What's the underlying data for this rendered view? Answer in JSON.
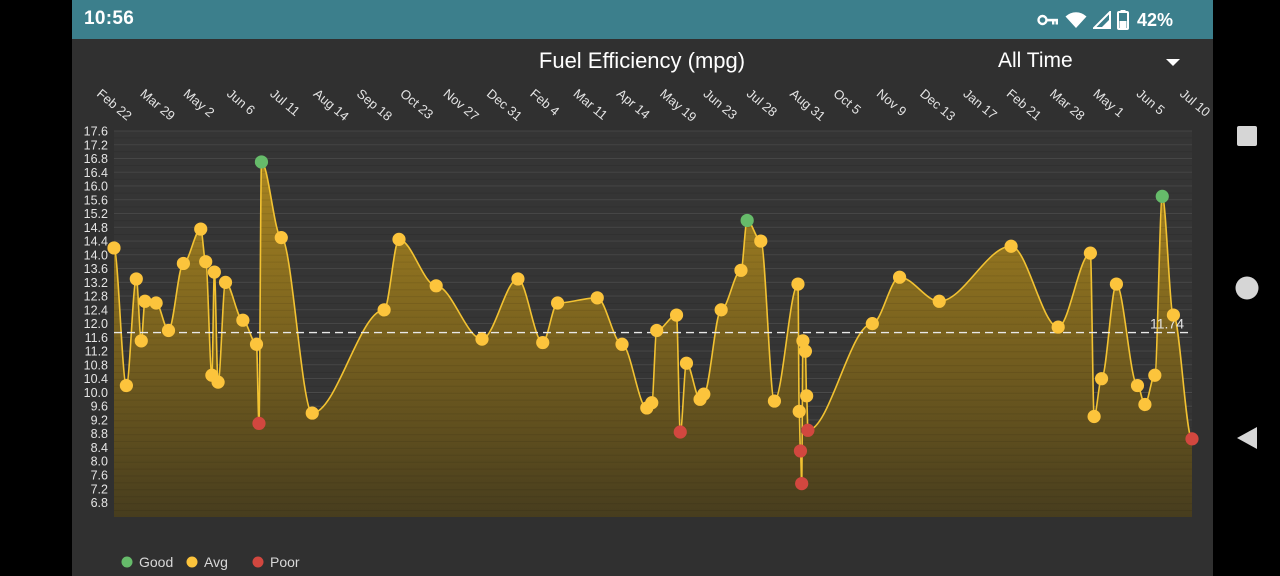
{
  "status_bar": {
    "time": "10:56",
    "battery_percent": "42%",
    "icons": [
      "vpn-key-icon",
      "wifi-icon",
      "cell-signal-icon",
      "battery-icon"
    ],
    "color": "#3c7f8c"
  },
  "chart_header": {
    "title": "Fuel Efficiency (mpg)",
    "range_selector": "All Time"
  },
  "legend": [
    {
      "label": "Good",
      "color": "#66bb6a"
    },
    {
      "label": "Avg",
      "color": "#fcc43c"
    },
    {
      "label": "Poor",
      "color": "#d2473f"
    }
  ],
  "nav_bar": {
    "icons": [
      "recents-square-icon",
      "home-circle-icon",
      "back-triangle-icon"
    ]
  },
  "chart_data": {
    "type": "line",
    "title": "Fuel Efficiency (mpg)",
    "x_tick_labels": [
      "Feb 22",
      "Mar 29",
      "May 2",
      "Jun 6",
      "Jul 11",
      "Aug 14",
      "Sep 18",
      "Oct 23",
      "Nov 27",
      "Dec 31",
      "Feb 4",
      "Mar 11",
      "Apr 14",
      "May 19",
      "Jun 23",
      "Jul 28",
      "Aug 31",
      "Oct 5",
      "Nov 9",
      "Dec 13",
      "Jan 17",
      "Feb 21",
      "Mar 28",
      "May 1",
      "Jun 5",
      "Jul 10"
    ],
    "y_ticks": [
      6.8,
      7.2,
      7.6,
      8.0,
      8.4,
      8.8,
      9.2,
      9.6,
      10.0,
      10.4,
      10.8,
      11.2,
      11.6,
      12.0,
      12.4,
      12.8,
      13.2,
      13.6,
      14.0,
      14.4,
      14.8,
      15.2,
      15.6,
      16.0,
      16.4,
      16.8,
      17.2,
      17.6
    ],
    "ylim": [
      6.4,
      17.6
    ],
    "average": 11.74,
    "average_label": "11.74",
    "grid": true,
    "legend_position": "bottom-left",
    "colors": {
      "good": "#66bb6a",
      "avg": "#fcc43c",
      "poor": "#d2473f",
      "line": "#f2c232",
      "fill_top": "#a98520",
      "fill_bottom": "#473d1e"
    },
    "points": [
      {
        "x": 0.0,
        "y": 14.2,
        "rating": "avg"
      },
      {
        "x": 0.5,
        "y": 10.2,
        "rating": "avg"
      },
      {
        "x": 0.9,
        "y": 13.3,
        "rating": "avg"
      },
      {
        "x": 1.1,
        "y": 11.5,
        "rating": "avg"
      },
      {
        "x": 1.25,
        "y": 12.65,
        "rating": "avg"
      },
      {
        "x": 1.7,
        "y": 12.6,
        "rating": "avg"
      },
      {
        "x": 2.2,
        "y": 11.8,
        "rating": "avg"
      },
      {
        "x": 2.8,
        "y": 13.75,
        "rating": "avg"
      },
      {
        "x": 3.5,
        "y": 14.75,
        "rating": "avg"
      },
      {
        "x": 3.7,
        "y": 13.8,
        "rating": "avg"
      },
      {
        "x": 3.95,
        "y": 10.5,
        "rating": "avg"
      },
      {
        "x": 4.05,
        "y": 13.5,
        "rating": "avg"
      },
      {
        "x": 4.2,
        "y": 10.3,
        "rating": "avg"
      },
      {
        "x": 4.5,
        "y": 13.2,
        "rating": "avg"
      },
      {
        "x": 5.2,
        "y": 12.1,
        "rating": "avg"
      },
      {
        "x": 5.75,
        "y": 11.4,
        "rating": "avg"
      },
      {
        "x": 5.85,
        "y": 9.1,
        "rating": "poor"
      },
      {
        "x": 5.95,
        "y": 16.7,
        "rating": "good"
      },
      {
        "x": 6.75,
        "y": 14.5,
        "rating": "avg"
      },
      {
        "x": 8.0,
        "y": 9.4,
        "rating": "avg"
      },
      {
        "x": 10.9,
        "y": 12.4,
        "rating": "avg"
      },
      {
        "x": 11.5,
        "y": 14.45,
        "rating": "avg"
      },
      {
        "x": 13.0,
        "y": 13.1,
        "rating": "avg"
      },
      {
        "x": 14.85,
        "y": 11.55,
        "rating": "avg"
      },
      {
        "x": 16.3,
        "y": 13.3,
        "rating": "avg"
      },
      {
        "x": 17.3,
        "y": 11.45,
        "rating": "avg"
      },
      {
        "x": 17.9,
        "y": 12.6,
        "rating": "avg"
      },
      {
        "x": 19.5,
        "y": 12.75,
        "rating": "avg"
      },
      {
        "x": 20.5,
        "y": 11.4,
        "rating": "avg"
      },
      {
        "x": 21.5,
        "y": 9.55,
        "rating": "avg"
      },
      {
        "x": 21.7,
        "y": 9.7,
        "rating": "avg"
      },
      {
        "x": 21.9,
        "y": 11.8,
        "rating": "avg"
      },
      {
        "x": 22.7,
        "y": 12.25,
        "rating": "avg"
      },
      {
        "x": 22.85,
        "y": 8.85,
        "rating": "poor"
      },
      {
        "x": 23.1,
        "y": 10.85,
        "rating": "avg"
      },
      {
        "x": 23.65,
        "y": 9.8,
        "rating": "avg"
      },
      {
        "x": 23.8,
        "y": 9.95,
        "rating": "avg"
      },
      {
        "x": 24.5,
        "y": 12.4,
        "rating": "avg"
      },
      {
        "x": 25.3,
        "y": 13.55,
        "rating": "avg"
      },
      {
        "x": 25.55,
        "y": 15.0,
        "rating": "good"
      },
      {
        "x": 26.1,
        "y": 14.4,
        "rating": "avg"
      },
      {
        "x": 26.65,
        "y": 9.75,
        "rating": "avg"
      },
      {
        "x": 27.6,
        "y": 13.15,
        "rating": "avg"
      },
      {
        "x": 27.65,
        "y": 9.45,
        "rating": "avg"
      },
      {
        "x": 27.7,
        "y": 8.3,
        "rating": "poor"
      },
      {
        "x": 27.75,
        "y": 7.35,
        "rating": "poor"
      },
      {
        "x": 27.8,
        "y": 11.5,
        "rating": "avg"
      },
      {
        "x": 27.9,
        "y": 11.2,
        "rating": "avg"
      },
      {
        "x": 27.95,
        "y": 9.9,
        "rating": "avg"
      },
      {
        "x": 28.0,
        "y": 8.9,
        "rating": "poor"
      },
      {
        "x": 30.6,
        "y": 12.0,
        "rating": "avg"
      },
      {
        "x": 31.7,
        "y": 13.35,
        "rating": "avg"
      },
      {
        "x": 33.3,
        "y": 12.65,
        "rating": "avg"
      },
      {
        "x": 36.2,
        "y": 14.25,
        "rating": "avg"
      },
      {
        "x": 38.1,
        "y": 11.9,
        "rating": "avg"
      },
      {
        "x": 39.4,
        "y": 14.05,
        "rating": "avg"
      },
      {
        "x": 39.55,
        "y": 9.3,
        "rating": "avg"
      },
      {
        "x": 39.85,
        "y": 10.4,
        "rating": "avg"
      },
      {
        "x": 40.45,
        "y": 13.15,
        "rating": "avg"
      },
      {
        "x": 41.3,
        "y": 10.2,
        "rating": "avg"
      },
      {
        "x": 41.6,
        "y": 9.65,
        "rating": "avg"
      },
      {
        "x": 42.0,
        "y": 10.5,
        "rating": "avg"
      },
      {
        "x": 42.3,
        "y": 15.7,
        "rating": "good"
      },
      {
        "x": 42.75,
        "y": 12.25,
        "rating": "avg"
      },
      {
        "x": 43.5,
        "y": 8.65,
        "rating": "poor"
      }
    ]
  }
}
